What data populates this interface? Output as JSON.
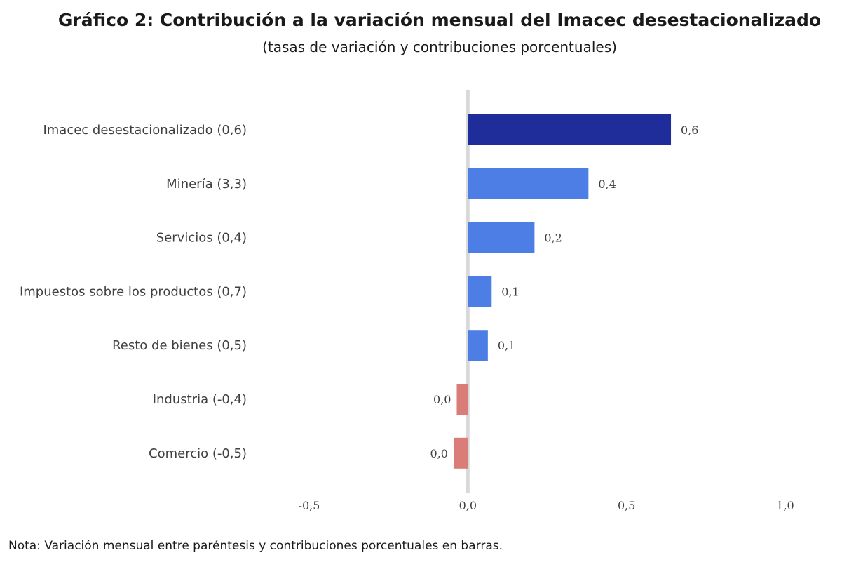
{
  "chart_data": {
    "type": "bar",
    "orientation": "horizontal",
    "title": "Gráfico 2: Contribución a la variación mensual del Imacec desestacionalizado",
    "subtitle": "(tasas de variación y contribuciones porcentuales)",
    "categories": [
      "Imacec desestacionalizado (0,6)",
      "Minería (3,3)",
      "Servicios (0,4)",
      "Impuestos sobre los productos (0,7)",
      "Resto de bienes (0,5)",
      "Industria (-0,4)",
      "Comercio (-0,5)"
    ],
    "values": [
      0.64,
      0.38,
      0.21,
      0.075,
      0.063,
      -0.035,
      -0.045
    ],
    "value_labels": [
      "0,6",
      "0,4",
      "0,2",
      "0,1",
      "0,1",
      "0,0",
      "0,0"
    ],
    "colors": [
      "#1f2d9a",
      "#4c7ee6",
      "#4c7ee6",
      "#4c7ee6",
      "#4c7ee6",
      "#da7c77",
      "#da7c77"
    ],
    "xlim": [
      -0.5,
      1.0
    ],
    "x_ticks": [
      -0.5,
      0.0,
      0.5,
      1.0
    ],
    "x_tick_labels": [
      "-0,5",
      "0,0",
      "0,5",
      "1,0"
    ],
    "zero_line_color": "#d9d9d9",
    "grid": false,
    "legend": "none",
    "note": "Nota: Variación mensual entre paréntesis y contribuciones porcentuales en barras."
  }
}
